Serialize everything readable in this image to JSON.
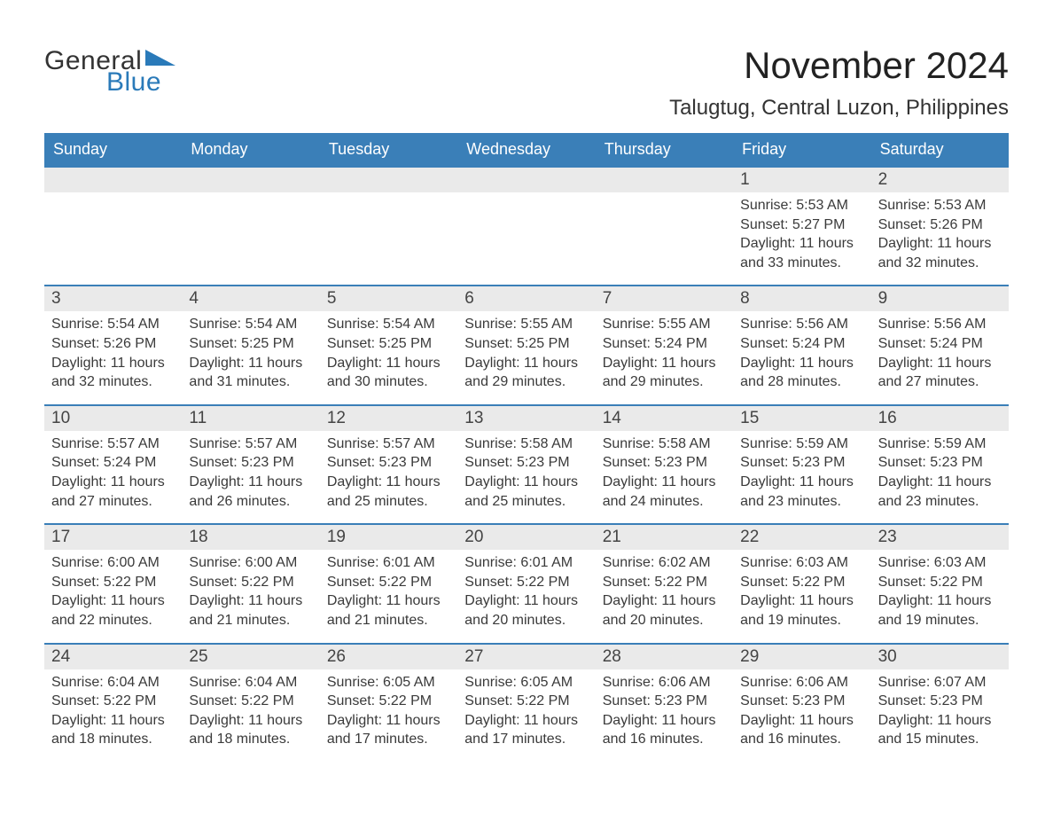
{
  "brand": {
    "word1": "General",
    "word2": "Blue",
    "triangle_color": "#2a7ab9"
  },
  "title": "November 2024",
  "location": "Talugtug, Central Luzon, Philippines",
  "weekdays": [
    "Sunday",
    "Monday",
    "Tuesday",
    "Wednesday",
    "Thursday",
    "Friday",
    "Saturday"
  ],
  "colors": {
    "header_blue": "#3a7fb8",
    "cell_bg": "#eaeaea",
    "text": "#333333",
    "divider": "#3a7fb8",
    "background": "#ffffff"
  },
  "typography": {
    "title_fontsize": 42,
    "location_fontsize": 24,
    "weekday_fontsize": 18,
    "daynum_fontsize": 19,
    "detail_fontsize": 16,
    "font_family": "Arial"
  },
  "calendar": {
    "leading_blanks": 5,
    "days": [
      {
        "n": 1,
        "sunrise": "5:53 AM",
        "sunset": "5:27 PM",
        "daylight": "11 hours and 33 minutes."
      },
      {
        "n": 2,
        "sunrise": "5:53 AM",
        "sunset": "5:26 PM",
        "daylight": "11 hours and 32 minutes."
      },
      {
        "n": 3,
        "sunrise": "5:54 AM",
        "sunset": "5:26 PM",
        "daylight": "11 hours and 32 minutes."
      },
      {
        "n": 4,
        "sunrise": "5:54 AM",
        "sunset": "5:25 PM",
        "daylight": "11 hours and 31 minutes."
      },
      {
        "n": 5,
        "sunrise": "5:54 AM",
        "sunset": "5:25 PM",
        "daylight": "11 hours and 30 minutes."
      },
      {
        "n": 6,
        "sunrise": "5:55 AM",
        "sunset": "5:25 PM",
        "daylight": "11 hours and 29 minutes."
      },
      {
        "n": 7,
        "sunrise": "5:55 AM",
        "sunset": "5:24 PM",
        "daylight": "11 hours and 29 minutes."
      },
      {
        "n": 8,
        "sunrise": "5:56 AM",
        "sunset": "5:24 PM",
        "daylight": "11 hours and 28 minutes."
      },
      {
        "n": 9,
        "sunrise": "5:56 AM",
        "sunset": "5:24 PM",
        "daylight": "11 hours and 27 minutes."
      },
      {
        "n": 10,
        "sunrise": "5:57 AM",
        "sunset": "5:24 PM",
        "daylight": "11 hours and 27 minutes."
      },
      {
        "n": 11,
        "sunrise": "5:57 AM",
        "sunset": "5:23 PM",
        "daylight": "11 hours and 26 minutes."
      },
      {
        "n": 12,
        "sunrise": "5:57 AM",
        "sunset": "5:23 PM",
        "daylight": "11 hours and 25 minutes."
      },
      {
        "n": 13,
        "sunrise": "5:58 AM",
        "sunset": "5:23 PM",
        "daylight": "11 hours and 25 minutes."
      },
      {
        "n": 14,
        "sunrise": "5:58 AM",
        "sunset": "5:23 PM",
        "daylight": "11 hours and 24 minutes."
      },
      {
        "n": 15,
        "sunrise": "5:59 AM",
        "sunset": "5:23 PM",
        "daylight": "11 hours and 23 minutes."
      },
      {
        "n": 16,
        "sunrise": "5:59 AM",
        "sunset": "5:23 PM",
        "daylight": "11 hours and 23 minutes."
      },
      {
        "n": 17,
        "sunrise": "6:00 AM",
        "sunset": "5:22 PM",
        "daylight": "11 hours and 22 minutes."
      },
      {
        "n": 18,
        "sunrise": "6:00 AM",
        "sunset": "5:22 PM",
        "daylight": "11 hours and 21 minutes."
      },
      {
        "n": 19,
        "sunrise": "6:01 AM",
        "sunset": "5:22 PM",
        "daylight": "11 hours and 21 minutes."
      },
      {
        "n": 20,
        "sunrise": "6:01 AM",
        "sunset": "5:22 PM",
        "daylight": "11 hours and 20 minutes."
      },
      {
        "n": 21,
        "sunrise": "6:02 AM",
        "sunset": "5:22 PM",
        "daylight": "11 hours and 20 minutes."
      },
      {
        "n": 22,
        "sunrise": "6:03 AM",
        "sunset": "5:22 PM",
        "daylight": "11 hours and 19 minutes."
      },
      {
        "n": 23,
        "sunrise": "6:03 AM",
        "sunset": "5:22 PM",
        "daylight": "11 hours and 19 minutes."
      },
      {
        "n": 24,
        "sunrise": "6:04 AM",
        "sunset": "5:22 PM",
        "daylight": "11 hours and 18 minutes."
      },
      {
        "n": 25,
        "sunrise": "6:04 AM",
        "sunset": "5:22 PM",
        "daylight": "11 hours and 18 minutes."
      },
      {
        "n": 26,
        "sunrise": "6:05 AM",
        "sunset": "5:22 PM",
        "daylight": "11 hours and 17 minutes."
      },
      {
        "n": 27,
        "sunrise": "6:05 AM",
        "sunset": "5:22 PM",
        "daylight": "11 hours and 17 minutes."
      },
      {
        "n": 28,
        "sunrise": "6:06 AM",
        "sunset": "5:23 PM",
        "daylight": "11 hours and 16 minutes."
      },
      {
        "n": 29,
        "sunrise": "6:06 AM",
        "sunset": "5:23 PM",
        "daylight": "11 hours and 16 minutes."
      },
      {
        "n": 30,
        "sunrise": "6:07 AM",
        "sunset": "5:23 PM",
        "daylight": "11 hours and 15 minutes."
      }
    ]
  },
  "labels": {
    "sunrise_prefix": "Sunrise: ",
    "sunset_prefix": "Sunset: ",
    "daylight_prefix": "Daylight: "
  }
}
